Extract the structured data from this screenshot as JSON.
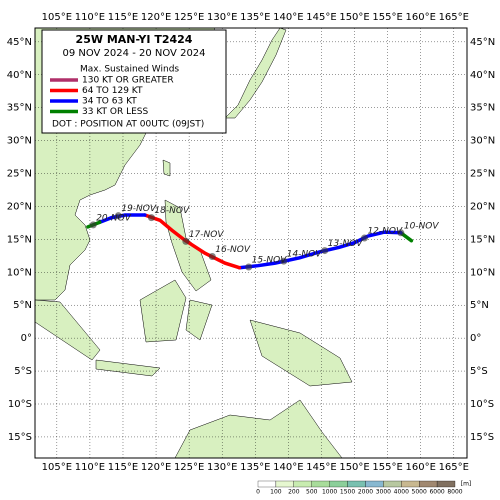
{
  "map": {
    "title": "25W  MAN-YI  T2424",
    "period": "09 NOV 2024 - 20 NOV 2024",
    "legend": {
      "heading": "Max. Sustained Winds",
      "items": [
        {
          "label": "130 KT OR GREATER",
          "color": "#b0306a"
        },
        {
          "label": "64 TO 129 KT",
          "color": "#ff0000"
        },
        {
          "label": "34 TO 63 KT",
          "color": "#0000ff"
        },
        {
          "label": "33 KT OR LESS",
          "color": "#008000"
        }
      ],
      "note": "DOT : POSITION AT 00UTC (09JST)"
    },
    "lon_lim": [
      101.7,
      167
    ],
    "lat_lim": [
      -18.2,
      47.1
    ],
    "lon_ticks": [
      {
        "value": 105,
        "label": "105°E"
      },
      {
        "value": 110,
        "label": "110°E"
      },
      {
        "value": 115,
        "label": "115°E"
      },
      {
        "value": 120,
        "label": "120°E"
      },
      {
        "value": 125,
        "label": "125°E"
      },
      {
        "value": 130,
        "label": "130°E"
      },
      {
        "value": 135,
        "label": "135°E"
      },
      {
        "value": 140,
        "label": "140°E"
      },
      {
        "value": 145,
        "label": "145°E"
      },
      {
        "value": 150,
        "label": "150°E"
      },
      {
        "value": 155,
        "label": "155°E"
      },
      {
        "value": 160,
        "label": "160°E"
      },
      {
        "value": 165,
        "label": "165°E"
      }
    ],
    "lat_ticks": [
      {
        "value": 45,
        "label": "45°N"
      },
      {
        "value": 40,
        "label": "40°N"
      },
      {
        "value": 35,
        "label": "35°N"
      },
      {
        "value": 30,
        "label": "30°N"
      },
      {
        "value": 25,
        "label": "25°N"
      },
      {
        "value": 20,
        "label": "20°N"
      },
      {
        "value": 15,
        "label": "15°N"
      },
      {
        "value": 10,
        "label": "10°N"
      },
      {
        "value": 5,
        "label": "5°N"
      },
      {
        "value": 0,
        "label": "0°"
      },
      {
        "value": -5,
        "label": "5°S"
      },
      {
        "value": -10,
        "label": "10°S"
      },
      {
        "value": -15,
        "label": "15°S"
      }
    ],
    "track": [
      {
        "legend_item": 3,
        "points": [
          [
            158.6,
            14.8
          ],
          [
            157.0,
            16.0
          ]
        ]
      },
      {
        "legend_item": 2,
        "points": [
          [
            157.0,
            16.0
          ],
          [
            154.5,
            16.1
          ],
          [
            152.0,
            15.5
          ],
          [
            150.0,
            14.5
          ],
          [
            147.7,
            13.8
          ],
          [
            144.7,
            13.1
          ],
          [
            141.7,
            12.2
          ],
          [
            138.0,
            11.4
          ],
          [
            135.4,
            11.0
          ],
          [
            132.6,
            10.7
          ]
        ]
      },
      {
        "legend_item": 1,
        "points": [
          [
            132.6,
            10.7
          ],
          [
            130.4,
            11.4
          ],
          [
            127.4,
            12.9
          ],
          [
            124.3,
            14.9
          ],
          [
            122.4,
            16.4
          ],
          [
            120.6,
            17.9
          ],
          [
            118.3,
            18.7
          ]
        ]
      },
      {
        "legend_item": 2,
        "points": [
          [
            118.3,
            18.7
          ],
          [
            115.3,
            18.7
          ],
          [
            113.3,
            18.3
          ],
          [
            111.5,
            17.6
          ]
        ]
      },
      {
        "legend_item": 3,
        "points": [
          [
            111.5,
            17.6
          ],
          [
            109.7,
            16.9
          ]
        ]
      }
    ],
    "positions": [
      {
        "label": "10-NOV",
        "lon": 157.0,
        "lat": 16.0
      },
      {
        "label": "12-NOV",
        "lon": 151.5,
        "lat": 15.2
      },
      {
        "label": "13-NOV",
        "lon": 145.5,
        "lat": 13.3
      },
      {
        "label": "14-NOV",
        "lon": 139.3,
        "lat": 11.7
      },
      {
        "label": "15-NOV",
        "lon": 134.0,
        "lat": 10.8
      },
      {
        "label": "16-NOV",
        "lon": 128.5,
        "lat": 12.4
      },
      {
        "label": "17-NOV",
        "lon": 124.5,
        "lat": 14.7
      },
      {
        "label": "18-NOV",
        "lon": 119.3,
        "lat": 18.3
      },
      {
        "label": "19-NOV",
        "lon": 114.3,
        "lat": 18.6
      },
      {
        "label": "20-NOV",
        "lon": 110.5,
        "lat": 17.2
      }
    ],
    "colorbar": {
      "labels": [
        "0",
        "100",
        "200",
        "500",
        "1000",
        "1500",
        "2000",
        "3000",
        "4000",
        "5000",
        "6000",
        "8000"
      ],
      "colors": [
        "#ffffff",
        "#e6f7d0",
        "#c8ecb0",
        "#a8dc9a",
        "#8ccf9a",
        "#79c0b0",
        "#88b8d0",
        "#b8c8a0",
        "#c8b890",
        "#a08870",
        "#807060"
      ],
      "unit": "[m]"
    }
  }
}
